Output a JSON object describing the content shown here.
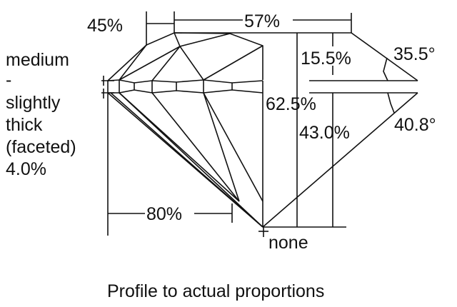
{
  "labels": {
    "crown_angle_star": "45%",
    "table": "57%",
    "crown_height": "15.5%",
    "crown_angle": "35.5°",
    "total_depth": "62.5%",
    "pavilion_depth": "43.0%",
    "pavilion_angle": "40.8°",
    "girdle": [
      "medium",
      "-",
      "slightly",
      "thick",
      "(faceted)",
      "4.0%"
    ],
    "lower_half": "80%",
    "culet": "none",
    "caption": "Profile to actual proportions"
  },
  "colors": {
    "line": "#111111",
    "background": "#ffffff"
  }
}
